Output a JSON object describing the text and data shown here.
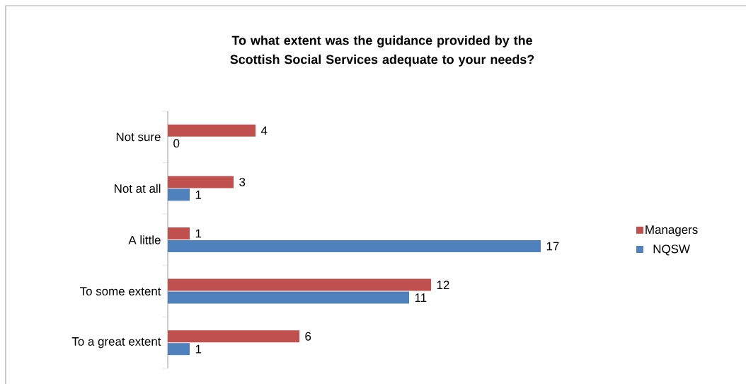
{
  "chart_data": {
    "type": "bar",
    "orientation": "horizontal",
    "title": "To what extent was the guidance provided by the Scottish Social Services adequate to your needs?",
    "categories": [
      "Not sure",
      "Not at all",
      "A little",
      "To some extent",
      "To a great extent"
    ],
    "series": [
      {
        "name": "Managers",
        "color": "#c0504d",
        "values": [
          4,
          3,
          1,
          12,
          6
        ]
      },
      {
        "name": "NQSW",
        "color": "#4f81bd",
        "values": [
          0,
          1,
          17,
          11,
          1
        ]
      }
    ],
    "data_labels": true,
    "legend": "right"
  }
}
